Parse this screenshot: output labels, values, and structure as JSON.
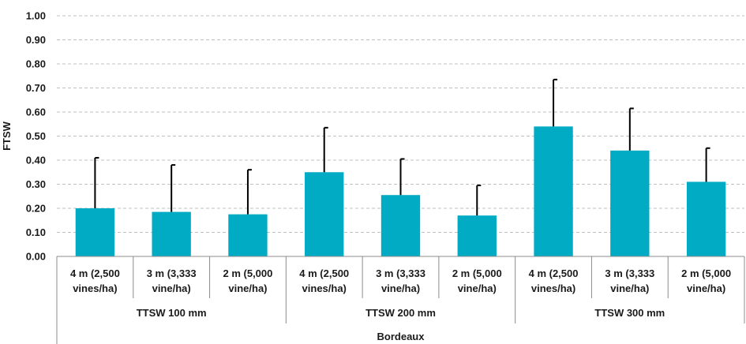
{
  "chart_data": {
    "type": "bar",
    "ylabel": "FTSW",
    "xlabel": "Bordeaux",
    "ylim": [
      0,
      1.0
    ],
    "ytick_step": 0.1,
    "yticks": [
      "0.00",
      "0.10",
      "0.20",
      "0.30",
      "0.40",
      "0.50",
      "0.60",
      "0.70",
      "0.80",
      "0.90",
      "1.00"
    ],
    "grid": "horizontal dashed",
    "bar_color": "#00abc3",
    "error_bar_color": "#000000",
    "groups": [
      {
        "label": "TTSW 100 mm",
        "categories": [
          {
            "line1": "4 m (2,500",
            "line2": "vines/ha)",
            "value": 0.2,
            "error_top": 0.41
          },
          {
            "line1": "3 m (3,333",
            "line2": "vine/ha)",
            "value": 0.185,
            "error_top": 0.38
          },
          {
            "line1": "2 m (5,000",
            "line2": "vine/ha)",
            "value": 0.175,
            "error_top": 0.36
          }
        ]
      },
      {
        "label": "TTSW 200 mm",
        "categories": [
          {
            "line1": "4 m (2,500",
            "line2": "vines/ha)",
            "value": 0.35,
            "error_top": 0.535
          },
          {
            "line1": "3 m (3,333",
            "line2": "vine/ha)",
            "value": 0.255,
            "error_top": 0.405
          },
          {
            "line1": "2 m (5,000",
            "line2": "vine/ha)",
            "value": 0.17,
            "error_top": 0.295
          }
        ]
      },
      {
        "label": "TTSW 300 mm",
        "categories": [
          {
            "line1": "4 m (2,500",
            "line2": "vines/ha)",
            "value": 0.54,
            "error_top": 0.735
          },
          {
            "line1": "3 m (3,333",
            "line2": "vine/ha)",
            "value": 0.44,
            "error_top": 0.615
          },
          {
            "line1": "2 m (5,000",
            "line2": "vine/ha)",
            "value": 0.31,
            "error_top": 0.45
          }
        ]
      }
    ]
  }
}
